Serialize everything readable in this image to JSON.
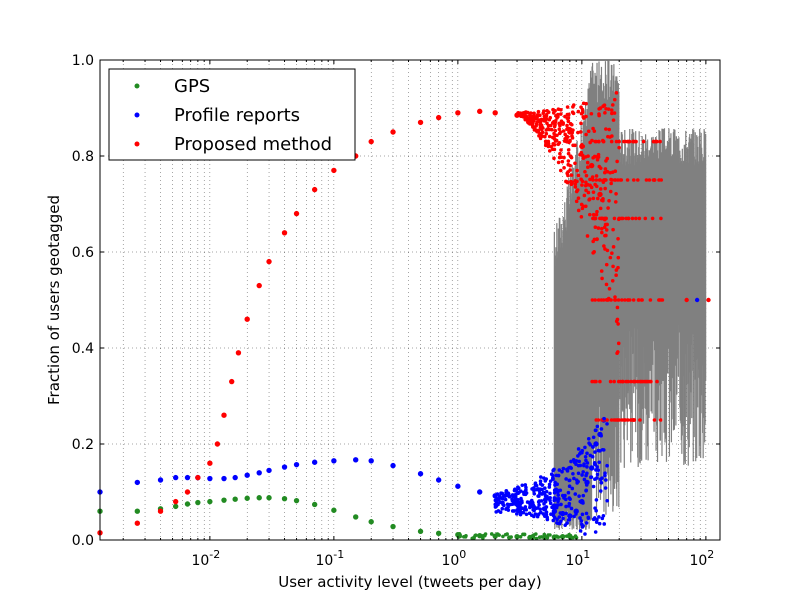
{
  "chart_data": {
    "type": "scatter",
    "title": "",
    "xlabel": "User activity level (tweets per day)",
    "ylabel": "Fraction of users geotagged",
    "xscale": "log",
    "xlim": [
      0.0013,
      130
    ],
    "ylim": [
      0,
      1.0
    ],
    "x_ticks": [
      {
        "base": "10",
        "exp": "-2",
        "value": 0.01
      },
      {
        "base": "10",
        "exp": "-1",
        "value": 0.1
      },
      {
        "base": "10",
        "exp": "0",
        "value": 1
      },
      {
        "base": "10",
        "exp": "1",
        "value": 10
      },
      {
        "base": "10",
        "exp": "2",
        "value": 100
      }
    ],
    "y_ticks": [
      "0.0",
      "0.2",
      "0.4",
      "0.6",
      "0.8",
      "1.0"
    ],
    "grid": true,
    "legend_position": "top-left",
    "error_bar_color": "#808080",
    "series": [
      {
        "name": "GPS",
        "color": "#228b22",
        "x": [
          0.0013,
          0.0026,
          0.004,
          0.0053,
          0.0066,
          0.008,
          0.01,
          0.013,
          0.016,
          0.02,
          0.025,
          0.03,
          0.04,
          0.05,
          0.07,
          0.1,
          0.15,
          0.2,
          0.3,
          0.5,
          0.7,
          1,
          1.5,
          2,
          3,
          4,
          5,
          6,
          7,
          8
        ],
        "y": [
          0.06,
          0.06,
          0.065,
          0.07,
          0.075,
          0.078,
          0.08,
          0.083,
          0.085,
          0.087,
          0.088,
          0.088,
          0.086,
          0.082,
          0.074,
          0.062,
          0.048,
          0.038,
          0.028,
          0.018,
          0.014,
          0.011,
          0.009,
          0.008,
          0.007,
          0.006,
          0.006,
          0.006,
          0.007,
          0.008
        ]
      },
      {
        "name": "Profile reports",
        "color": "#0000ff",
        "x": [
          0.0013,
          0.0026,
          0.004,
          0.0053,
          0.0066,
          0.008,
          0.01,
          0.013,
          0.016,
          0.02,
          0.025,
          0.03,
          0.04,
          0.05,
          0.07,
          0.1,
          0.15,
          0.2,
          0.3,
          0.5,
          0.7,
          1,
          1.5,
          2,
          3,
          4,
          5,
          6,
          7,
          8,
          9,
          10,
          11,
          12,
          13,
          14,
          15
        ],
        "y": [
          0.1,
          0.12,
          0.125,
          0.13,
          0.13,
          0.13,
          0.128,
          0.128,
          0.13,
          0.135,
          0.14,
          0.145,
          0.152,
          0.157,
          0.162,
          0.165,
          0.167,
          0.165,
          0.155,
          0.138,
          0.125,
          0.112,
          0.1,
          0.092,
          0.08,
          0.072,
          0.065,
          0.06,
          0.055,
          0.05,
          0.06,
          0.08,
          0.12,
          0.15,
          0.2,
          0.22,
          0.25
        ]
      },
      {
        "name": "Proposed method",
        "color": "#ff0000",
        "x": [
          0.0013,
          0.0026,
          0.004,
          0.0053,
          0.0066,
          0.008,
          0.01,
          0.0115,
          0.013,
          0.015,
          0.017,
          0.02,
          0.025,
          0.03,
          0.04,
          0.05,
          0.07,
          0.1,
          0.15,
          0.2,
          0.3,
          0.5,
          0.7,
          1,
          1.5,
          2,
          3,
          4,
          5,
          6,
          8,
          10,
          12,
          14
        ],
        "y": [
          0.015,
          0.035,
          0.06,
          0.08,
          0.1,
          0.13,
          0.16,
          0.2,
          0.26,
          0.33,
          0.39,
          0.46,
          0.53,
          0.58,
          0.64,
          0.68,
          0.73,
          0.77,
          0.8,
          0.83,
          0.85,
          0.87,
          0.88,
          0.89,
          0.893,
          0.89,
          0.885,
          0.88,
          0.875,
          0.87,
          0.85,
          0.82,
          0.78,
          0.72
        ]
      }
    ]
  }
}
